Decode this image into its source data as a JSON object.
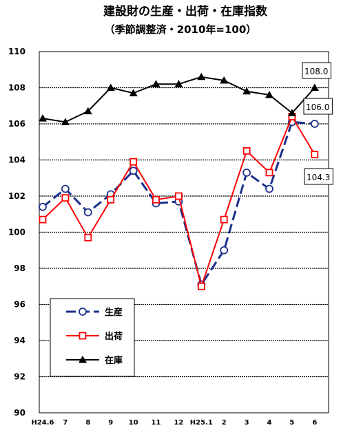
{
  "chart_data": {
    "type": "line",
    "title": "建設財の生産・出荷・在庫指数",
    "subtitle": "（季節調整済・2010年=100）",
    "categories": [
      "H24.6",
      "7",
      "8",
      "9",
      "10",
      "11",
      "12",
      "H25.1",
      "2",
      "3",
      "4",
      "5",
      "6"
    ],
    "ylim": [
      90,
      110
    ],
    "yticks": [
      90,
      92,
      94,
      96,
      98,
      100,
      102,
      104,
      106,
      108,
      110
    ],
    "grid": true,
    "legend_position": "bottom-left",
    "series": [
      {
        "name": "生産",
        "color": "#1a2f8c",
        "marker": "circle",
        "dashed": true,
        "values": [
          101.4,
          102.4,
          101.1,
          102.1,
          103.4,
          101.6,
          101.7,
          97.1,
          99.0,
          103.3,
          102.4,
          106.1,
          106.0
        ]
      },
      {
        "name": "出荷",
        "color": "#ff0000",
        "marker": "square",
        "dashed": false,
        "values": [
          100.7,
          101.9,
          99.7,
          101.8,
          103.9,
          101.8,
          102.0,
          97.0,
          100.7,
          104.5,
          103.3,
          106.4,
          104.3
        ]
      },
      {
        "name": "在庫",
        "color": "#000000",
        "marker": "triangle",
        "dashed": false,
        "values": [
          106.3,
          106.1,
          106.7,
          108.0,
          107.7,
          108.2,
          108.2,
          108.6,
          108.4,
          107.8,
          107.6,
          106.6,
          108.0
        ]
      }
    ],
    "annotations": [
      {
        "series": "在庫",
        "text": "108.0"
      },
      {
        "series": "生産",
        "text": "106.0"
      },
      {
        "series": "出荷",
        "text": "104.3"
      }
    ]
  }
}
